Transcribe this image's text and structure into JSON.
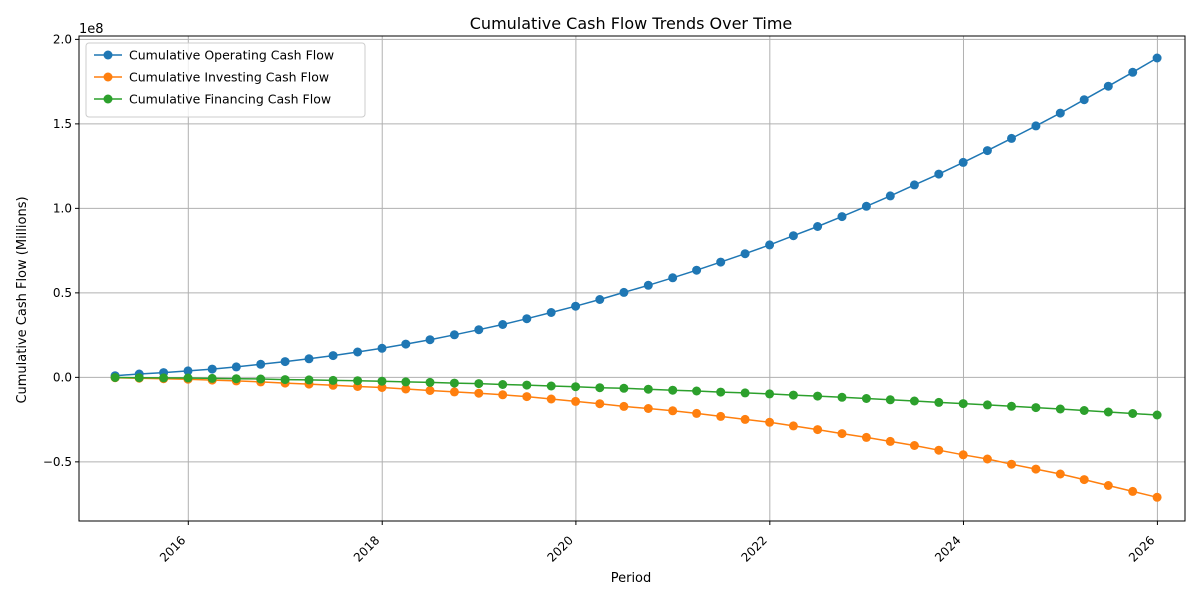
{
  "chart_data": {
    "type": "line",
    "title": "Cumulative Cash Flow Trends Over Time",
    "xlabel": "Period",
    "ylabel": "Cumulative Cash Flow (Millions)",
    "y_offset_label": "1e8",
    "xlim": [
      "2014-11-15",
      "2026-04-15"
    ],
    "ylim": [
      -85000000,
      202000000
    ],
    "x_ticks": [
      "2016",
      "2018",
      "2020",
      "2022",
      "2024",
      "2026"
    ],
    "y_ticks": [
      "−0.5",
      "0.0",
      "0.5",
      "1.0",
      "1.5",
      "2.0"
    ],
    "y_tick_values": [
      -50000000,
      0,
      50000000,
      100000000,
      150000000,
      200000000
    ],
    "grid": true,
    "legend_position": "top-left",
    "x": [
      "2015-03-31",
      "2015-06-30",
      "2015-09-30",
      "2015-12-31",
      "2016-03-31",
      "2016-06-30",
      "2016-09-30",
      "2016-12-31",
      "2017-03-31",
      "2017-06-30",
      "2017-09-30",
      "2017-12-31",
      "2018-03-31",
      "2018-06-30",
      "2018-09-30",
      "2018-12-31",
      "2019-03-31",
      "2019-06-30",
      "2019-09-30",
      "2019-12-31",
      "2020-03-31",
      "2020-06-30",
      "2020-09-30",
      "2020-12-31",
      "2021-03-31",
      "2021-06-30",
      "2021-09-30",
      "2021-12-31",
      "2022-03-31",
      "2022-06-30",
      "2022-09-30",
      "2022-12-31",
      "2023-03-31",
      "2023-06-30",
      "2023-09-30",
      "2023-12-31",
      "2024-03-31",
      "2024-06-30",
      "2024-09-30",
      "2024-12-31",
      "2025-03-31",
      "2025-06-30",
      "2025-09-30",
      "2025-12-31"
    ],
    "series": [
      {
        "name": "Cumulative Operating Cash Flow",
        "color": "#1f77b4",
        "values": [
          1000000,
          2000000,
          2800000,
          3800000,
          4900000,
          6200000,
          7700000,
          9300000,
          11000000,
          12900000,
          15000000,
          17200000,
          19700000,
          22300000,
          25200000,
          28200000,
          31300000,
          34700000,
          38400000,
          42100000,
          46100000,
          50300000,
          54500000,
          58900000,
          63400000,
          68200000,
          73200000,
          78400000,
          83800000,
          89300000,
          95100000,
          101200000,
          107400000,
          113900000,
          120300000,
          127200000,
          134200000,
          141400000,
          148800000,
          156400000,
          164300000,
          172300000,
          180500000,
          189000000
        ]
      },
      {
        "name": "Cumulative Investing Cash Flow",
        "color": "#ff7f0e",
        "values": [
          -200000,
          -500000,
          -800000,
          -1100000,
          -1600000,
          -2100000,
          -2700000,
          -3400000,
          -4000000,
          -4700000,
          -5400000,
          -6000000,
          -6900000,
          -7800000,
          -8600000,
          -9400000,
          -10300000,
          -11400000,
          -12800000,
          -14200000,
          -15600000,
          -17200000,
          -18400000,
          -19800000,
          -21300000,
          -23100000,
          -24900000,
          -26600000,
          -28700000,
          -30900000,
          -33300000,
          -35500000,
          -37900000,
          -40300000,
          -43100000,
          -45800000,
          -48300000,
          -51400000,
          -54300000,
          -57200000,
          -60500000,
          -64000000,
          -67500000,
          -71000000
        ]
      },
      {
        "name": "Cumulative Financing Cash Flow",
        "color": "#2ca02c",
        "values": [
          -100000,
          -200000,
          -300000,
          -400000,
          -600000,
          -800000,
          -1000000,
          -1300000,
          -1500000,
          -1800000,
          -2000000,
          -2300000,
          -2700000,
          -3000000,
          -3400000,
          -3700000,
          -4200000,
          -4600000,
          -5100000,
          -5500000,
          -6100000,
          -6500000,
          -7000000,
          -7600000,
          -8100000,
          -8700000,
          -9200000,
          -9800000,
          -10500000,
          -11100000,
          -11800000,
          -12500000,
          -13300000,
          -14000000,
          -14800000,
          -15500000,
          -16300000,
          -17100000,
          -17900000,
          -18700000,
          -19600000,
          -20500000,
          -21400000,
          -22300000
        ]
      }
    ]
  }
}
